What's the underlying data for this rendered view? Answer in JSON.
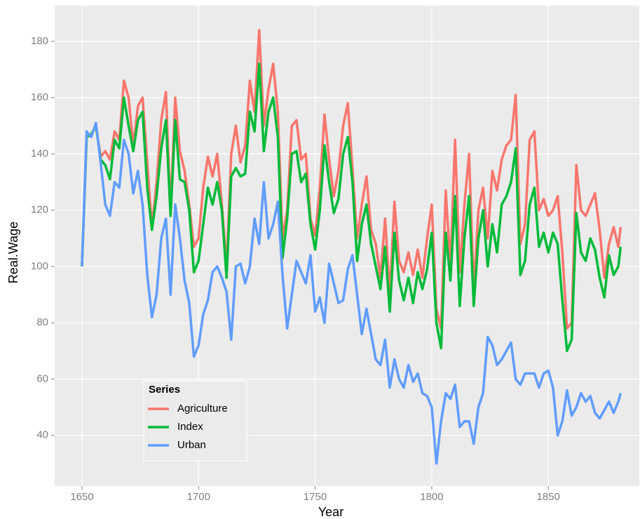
{
  "chart_data": {
    "type": "line",
    "x_label": "Year",
    "y_label": "Real.Wage",
    "legend_title": "Series",
    "x": [
      1650,
      1652,
      1654,
      1656,
      1658,
      1660,
      1662,
      1664,
      1666,
      1668,
      1670,
      1672,
      1674,
      1676,
      1678,
      1680,
      1682,
      1684,
      1686,
      1688,
      1690,
      1692,
      1694,
      1696,
      1698,
      1700,
      1702,
      1704,
      1706,
      1708,
      1710,
      1712,
      1714,
      1716,
      1718,
      1720,
      1722,
      1724,
      1726,
      1728,
      1730,
      1732,
      1734,
      1736,
      1738,
      1740,
      1742,
      1744,
      1746,
      1748,
      1750,
      1752,
      1754,
      1756,
      1758,
      1760,
      1762,
      1764,
      1766,
      1768,
      1770,
      1772,
      1774,
      1776,
      1778,
      1780,
      1782,
      1784,
      1786,
      1788,
      1790,
      1792,
      1794,
      1796,
      1798,
      1800,
      1802,
      1804,
      1806,
      1808,
      1810,
      1812,
      1814,
      1816,
      1818,
      1820,
      1822,
      1824,
      1826,
      1828,
      1830,
      1832,
      1834,
      1836,
      1838,
      1840,
      1842,
      1844,
      1846,
      1848,
      1850,
      1852,
      1854,
      1856,
      1858,
      1860,
      1862,
      1864,
      1866,
      1868,
      1870,
      1872,
      1874,
      1876,
      1878,
      1880,
      1881
    ],
    "series": [
      {
        "name": "Agriculture",
        "color": "#F8766D",
        "values": [
          100,
          146,
          147,
          150,
          139,
          141,
          138,
          148,
          145,
          166,
          160,
          143,
          157,
          160,
          137,
          114,
          130,
          152,
          162,
          120,
          160,
          141,
          134,
          122,
          107,
          110,
          128,
          139,
          132,
          140,
          122,
          100,
          140,
          150,
          137,
          143,
          166,
          155,
          184,
          150,
          163,
          172,
          155,
          110,
          120,
          150,
          152,
          138,
          140,
          117,
          111,
          128,
          154,
          138,
          125,
          134,
          150,
          158,
          135,
          110,
          122,
          132,
          113,
          108,
          96,
          117,
          90,
          123,
          102,
          98,
          105,
          97,
          106,
          96,
          110,
          122,
          85,
          78,
          127,
          100,
          145,
          98,
          122,
          140,
          92,
          120,
          128,
          110,
          134,
          127,
          138,
          143,
          145,
          161,
          108,
          115,
          145,
          148,
          120,
          124,
          118,
          120,
          125,
          105,
          78,
          80,
          136,
          120,
          118,
          122,
          126,
          113,
          96,
          108,
          114,
          107,
          114
        ]
      },
      {
        "name": "Index",
        "color": "#00BA38",
        "values": [
          100,
          146,
          147,
          150,
          138,
          136,
          131,
          145,
          142,
          160,
          150,
          141,
          152,
          155,
          128,
          113,
          125,
          142,
          152,
          118,
          152,
          131,
          130,
          120,
          98,
          102,
          115,
          128,
          122,
          130,
          120,
          96,
          132,
          135,
          132,
          133,
          155,
          148,
          172,
          141,
          155,
          160,
          146,
          103,
          117,
          140,
          141,
          130,
          133,
          115,
          106,
          120,
          143,
          130,
          119,
          124,
          140,
          146,
          130,
          102,
          115,
          122,
          108,
          100,
          92,
          107,
          84,
          112,
          95,
          88,
          96,
          87,
          98,
          92,
          99,
          112,
          80,
          71,
          112,
          95,
          125,
          86,
          110,
          125,
          86,
          110,
          120,
          100,
          115,
          105,
          122,
          125,
          130,
          142,
          97,
          102,
          122,
          128,
          107,
          112,
          105,
          112,
          108,
          88,
          70,
          74,
          119,
          105,
          102,
          110,
          106,
          96,
          89,
          104,
          97,
          100,
          107
        ]
      },
      {
        "name": "Urban",
        "color": "#619CFF",
        "values": [
          100,
          148,
          146,
          151,
          137,
          122,
          118,
          130,
          128,
          145,
          140,
          126,
          134,
          122,
          97,
          82,
          90,
          110,
          117,
          90,
          122,
          110,
          95,
          87,
          68,
          72,
          83,
          88,
          98,
          100,
          96,
          91,
          74,
          100,
          101,
          94,
          100,
          117,
          108,
          130,
          110,
          115,
          123,
          97,
          78,
          90,
          102,
          98,
          94,
          104,
          84,
          89,
          80,
          101,
          94,
          87,
          88,
          99,
          104,
          90,
          76,
          85,
          76,
          67,
          65,
          74,
          57,
          67,
          60,
          57,
          65,
          59,
          62,
          55,
          54,
          50,
          30,
          45,
          55,
          53,
          58,
          43,
          45,
          45,
          37,
          50,
          55,
          75,
          72,
          65,
          67,
          70,
          73,
          60,
          58,
          62,
          62,
          62,
          57,
          62,
          63,
          57,
          40,
          45,
          56,
          47,
          50,
          55,
          52,
          54,
          48,
          46,
          49,
          52,
          48,
          52,
          55
        ]
      }
    ],
    "xlim": [
      1638.3,
      1889
    ],
    "ylim": [
      22,
      192.7
    ],
    "xticks": [
      1650,
      1700,
      1750,
      1800,
      1850
    ],
    "yticks": [
      40,
      60,
      80,
      100,
      120,
      140,
      160,
      180
    ],
    "grid": true
  }
}
